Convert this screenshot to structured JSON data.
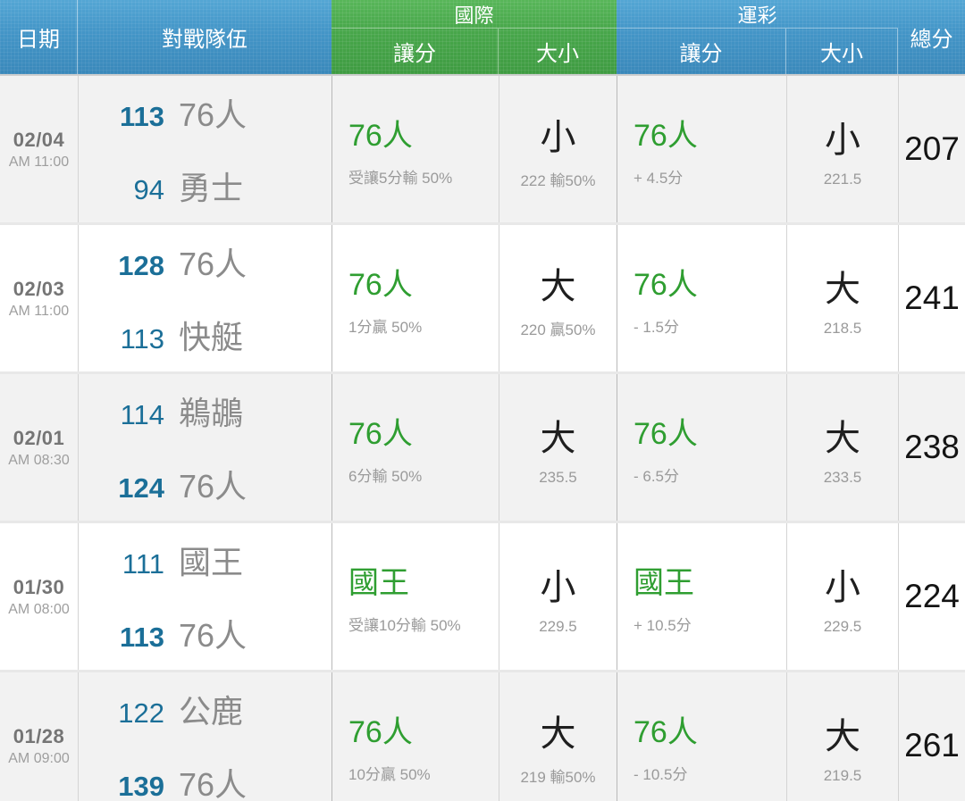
{
  "colors": {
    "score_blue": "#1b6f98",
    "pick_green": "#2f9e31",
    "row_alt": "#f2f2f2",
    "header_blue": "#4496c8",
    "header_green": "#48a74b"
  },
  "table": {
    "header": {
      "date": "日期",
      "teams": "對戰隊伍",
      "international": "國際",
      "sports_lottery": "運彩",
      "spread": "讓分",
      "over_under": "大小",
      "total": "總分"
    },
    "rows": [
      {
        "date": "02/04",
        "time": "AM 11:00",
        "team1": {
          "score": "113",
          "name": "76人",
          "winner": true
        },
        "team2": {
          "score": "94",
          "name": "勇士",
          "winner": false
        },
        "intl_spread": {
          "pick": "76人",
          "detail": "受讓5分輸 50%"
        },
        "intl_over_under": {
          "pick": "小",
          "detail": "222 輸50%"
        },
        "lottery_spread": {
          "pick": "76人",
          "detail": "+ 4.5分"
        },
        "lottery_over_under": {
          "pick": "小",
          "detail": "221.5"
        },
        "total": "207"
      },
      {
        "date": "02/03",
        "time": "AM 11:00",
        "team1": {
          "score": "128",
          "name": "76人",
          "winner": true
        },
        "team2": {
          "score": "113",
          "name": "快艇",
          "winner": false
        },
        "intl_spread": {
          "pick": "76人",
          "detail": "1分贏 50%"
        },
        "intl_over_under": {
          "pick": "大",
          "detail": "220 贏50%"
        },
        "lottery_spread": {
          "pick": "76人",
          "detail": "- 1.5分"
        },
        "lottery_over_under": {
          "pick": "大",
          "detail": "218.5"
        },
        "total": "241"
      },
      {
        "date": "02/01",
        "time": "AM 08:30",
        "team1": {
          "score": "114",
          "name": "鵜鶘",
          "winner": false
        },
        "team2": {
          "score": "124",
          "name": "76人",
          "winner": true
        },
        "intl_spread": {
          "pick": "76人",
          "detail": "6分輸 50%"
        },
        "intl_over_under": {
          "pick": "大",
          "detail": "235.5"
        },
        "lottery_spread": {
          "pick": "76人",
          "detail": "- 6.5分"
        },
        "lottery_over_under": {
          "pick": "大",
          "detail": "233.5"
        },
        "total": "238"
      },
      {
        "date": "01/30",
        "time": "AM 08:00",
        "team1": {
          "score": "111",
          "name": "國王",
          "winner": false
        },
        "team2": {
          "score": "113",
          "name": "76人",
          "winner": true
        },
        "intl_spread": {
          "pick": "國王",
          "detail": "受讓10分輸 50%"
        },
        "intl_over_under": {
          "pick": "小",
          "detail": "229.5"
        },
        "lottery_spread": {
          "pick": "國王",
          "detail": "+ 10.5分"
        },
        "lottery_over_under": {
          "pick": "小",
          "detail": "229.5"
        },
        "total": "224"
      },
      {
        "date": "01/28",
        "time": "AM 09:00",
        "team1": {
          "score": "122",
          "name": "公鹿",
          "winner": false
        },
        "team2": {
          "score": "139",
          "name": "76人",
          "winner": true
        },
        "intl_spread": {
          "pick": "76人",
          "detail": "10分贏 50%"
        },
        "intl_over_under": {
          "pick": "大",
          "detail": "219 輸50%"
        },
        "lottery_spread": {
          "pick": "76人",
          "detail": "- 10.5分"
        },
        "lottery_over_under": {
          "pick": "大",
          "detail": "219.5"
        },
        "total": "261"
      }
    ]
  }
}
